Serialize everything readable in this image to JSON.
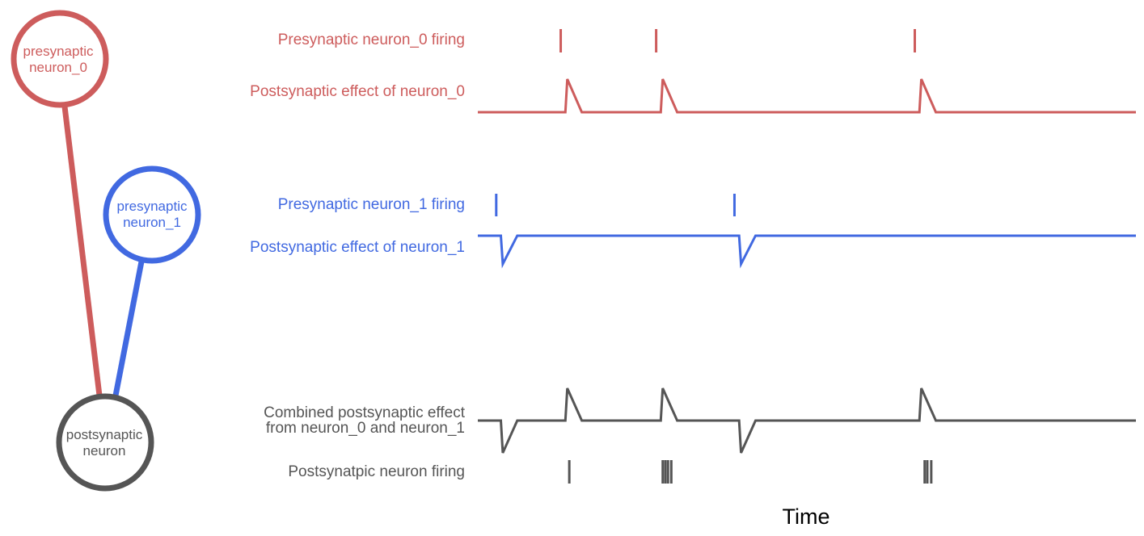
{
  "colors": {
    "neuron_0": "#cd5c5c",
    "neuron_1": "#4169e1",
    "postsynaptic": "#555555",
    "time_label": "#000000"
  },
  "nodes": {
    "pre0": {
      "line1": "presynaptic",
      "line2": "neuron_0"
    },
    "pre1": {
      "line1": "presynaptic",
      "line2": "neuron_1"
    },
    "post": {
      "line1": "postsynaptic",
      "line2": "neuron"
    }
  },
  "labels": {
    "pre0_firing": "Presynaptic neuron_0 firing",
    "post0_effect": "Postsynaptic effect of neuron_0",
    "pre1_firing": "Presynaptic neuron_1 firing",
    "post1_effect": "Postsynaptic effect of neuron_1",
    "combined_line1": "Combined postsynaptic effect",
    "combined_line2": "from neuron_0 and neuron_1",
    "post_firing": "Postsynatpic neuron firing"
  },
  "axis": {
    "xlabel": "Time"
  },
  "timeline": {
    "time_range": [
      0,
      100
    ],
    "neuron_0_spike_times": [
      12.6,
      27.1,
      66.4
    ],
    "neuron_1_spike_times": [
      2.8,
      39.0
    ],
    "postsynaptic_spike_times": [
      13.9,
      28.1,
      28.5,
      28.9,
      29.4,
      67.9,
      68.3,
      68.9
    ]
  }
}
